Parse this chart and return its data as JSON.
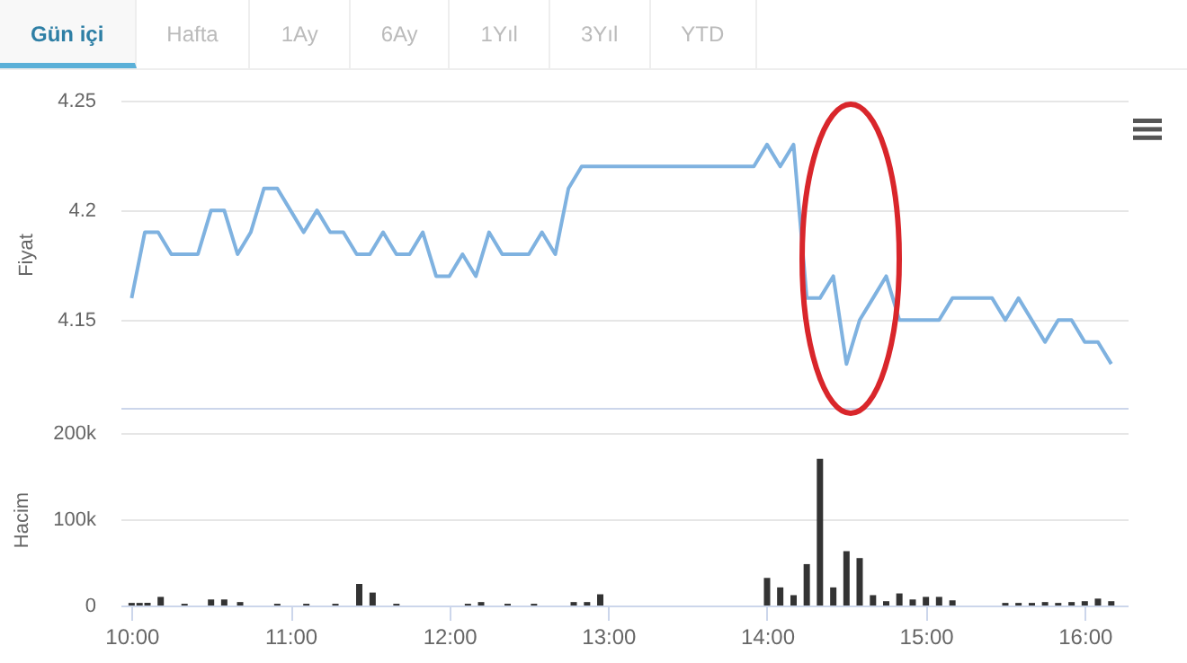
{
  "chart_data": [
    {
      "type": "line",
      "ylabel": "Fiyat",
      "annotations": [
        "Gün içi",
        "Hafta",
        "1Ay",
        "6Ay",
        "1Yıl",
        "3Yıl",
        "YTD"
      ],
      "x": [
        10,
        10.083,
        10.167,
        10.25,
        10.417,
        10.5,
        10.583,
        10.667,
        10.75,
        10.833,
        10.917,
        11,
        11.083,
        11.167,
        11.25,
        11.333,
        11.417,
        11.5,
        11.583,
        11.667,
        11.75,
        11.833,
        11.917,
        12,
        12.083,
        12.167,
        12.25,
        12.333,
        12.5,
        12.583,
        12.667,
        12.75,
        12.833,
        13.917,
        14,
        14.083,
        14.167,
        14.25,
        14.333,
        14.417,
        14.5,
        14.583,
        14.667,
        14.75,
        14.833,
        15.083,
        15.167,
        15.417,
        15.5,
        15.583,
        15.75,
        15.833,
        15.917,
        16,
        16.083,
        16.167
      ],
      "series": [
        {
          "color": "#7fb2e0",
          "values": [
            4.16,
            4.19,
            4.19,
            4.18,
            4.18,
            4.2,
            4.2,
            4.18,
            4.19,
            4.21,
            4.21,
            4.2,
            4.19,
            4.2,
            4.19,
            4.19,
            4.18,
            4.18,
            4.19,
            4.18,
            4.18,
            4.19,
            4.17,
            4.17,
            4.18,
            4.17,
            4.19,
            4.18,
            4.18,
            4.19,
            4.18,
            4.21,
            4.22,
            4.22,
            4.23,
            4.22,
            4.23,
            4.16,
            4.16,
            4.17,
            4.13,
            4.15,
            4.16,
            4.17,
            4.15,
            4.15,
            4.16,
            4.16,
            4.15,
            4.16,
            4.14,
            4.15,
            4.15,
            4.14,
            4.14,
            4.13
          ]
        }
      ],
      "xlim": [
        9.93,
        16.27
      ],
      "ylim": [
        4.11,
        4.25
      ],
      "yticks": [
        4.15,
        4.2,
        4.25
      ],
      "grid": "y",
      "tick_labels": "y",
      "legend": false,
      "marker": "none"
    },
    {
      "type": "bar",
      "ylabel": "Hacim",
      "x": [
        10,
        10.05,
        10.1,
        10.183,
        10.333,
        10.5,
        10.583,
        10.683,
        10.917,
        11.1,
        11.283,
        11.433,
        11.517,
        11.667,
        12.117,
        12.2,
        12.367,
        12.533,
        12.783,
        12.867,
        12.95,
        14,
        14.083,
        14.167,
        14.25,
        14.333,
        14.417,
        14.5,
        14.583,
        14.667,
        14.75,
        14.833,
        14.917,
        15,
        15.083,
        15.167,
        15.5,
        15.583,
        15.667,
        15.75,
        15.833,
        15.917,
        16,
        16.083,
        16.167
      ],
      "series": [
        {
          "color": "#333333",
          "values": [
            3000,
            3000,
            3000,
            10000,
            2000,
            7000,
            7000,
            4000,
            2000,
            2000,
            2000,
            25000,
            15000,
            2000,
            2000,
            4000,
            2000,
            2000,
            4000,
            4000,
            13000,
            32000,
            21000,
            12000,
            48000,
            170000,
            21000,
            63000,
            55000,
            12000,
            5000,
            14000,
            7000,
            10000,
            10000,
            6000,
            3000,
            3000,
            3000,
            4000,
            3000,
            4000,
            5000,
            8000,
            5000
          ]
        }
      ],
      "xlim": [
        9.93,
        16.27
      ],
      "xticks": [
        {
          "value": 10,
          "label": "10:00"
        },
        {
          "value": 11,
          "label": "11:00"
        },
        {
          "value": 12,
          "label": "12:00"
        },
        {
          "value": 13,
          "label": "13:00"
        },
        {
          "value": 14,
          "label": "14:00"
        },
        {
          "value": 15,
          "label": "15:00"
        },
        {
          "value": 16,
          "label": "16:00"
        }
      ],
      "ylim": [
        0,
        200000
      ],
      "yticks": [
        0,
        {
          "value": 100000,
          "label": "100k"
        },
        {
          "value": 200000,
          "label": "200k"
        }
      ],
      "grid": "y",
      "legend": false
    }
  ]
}
